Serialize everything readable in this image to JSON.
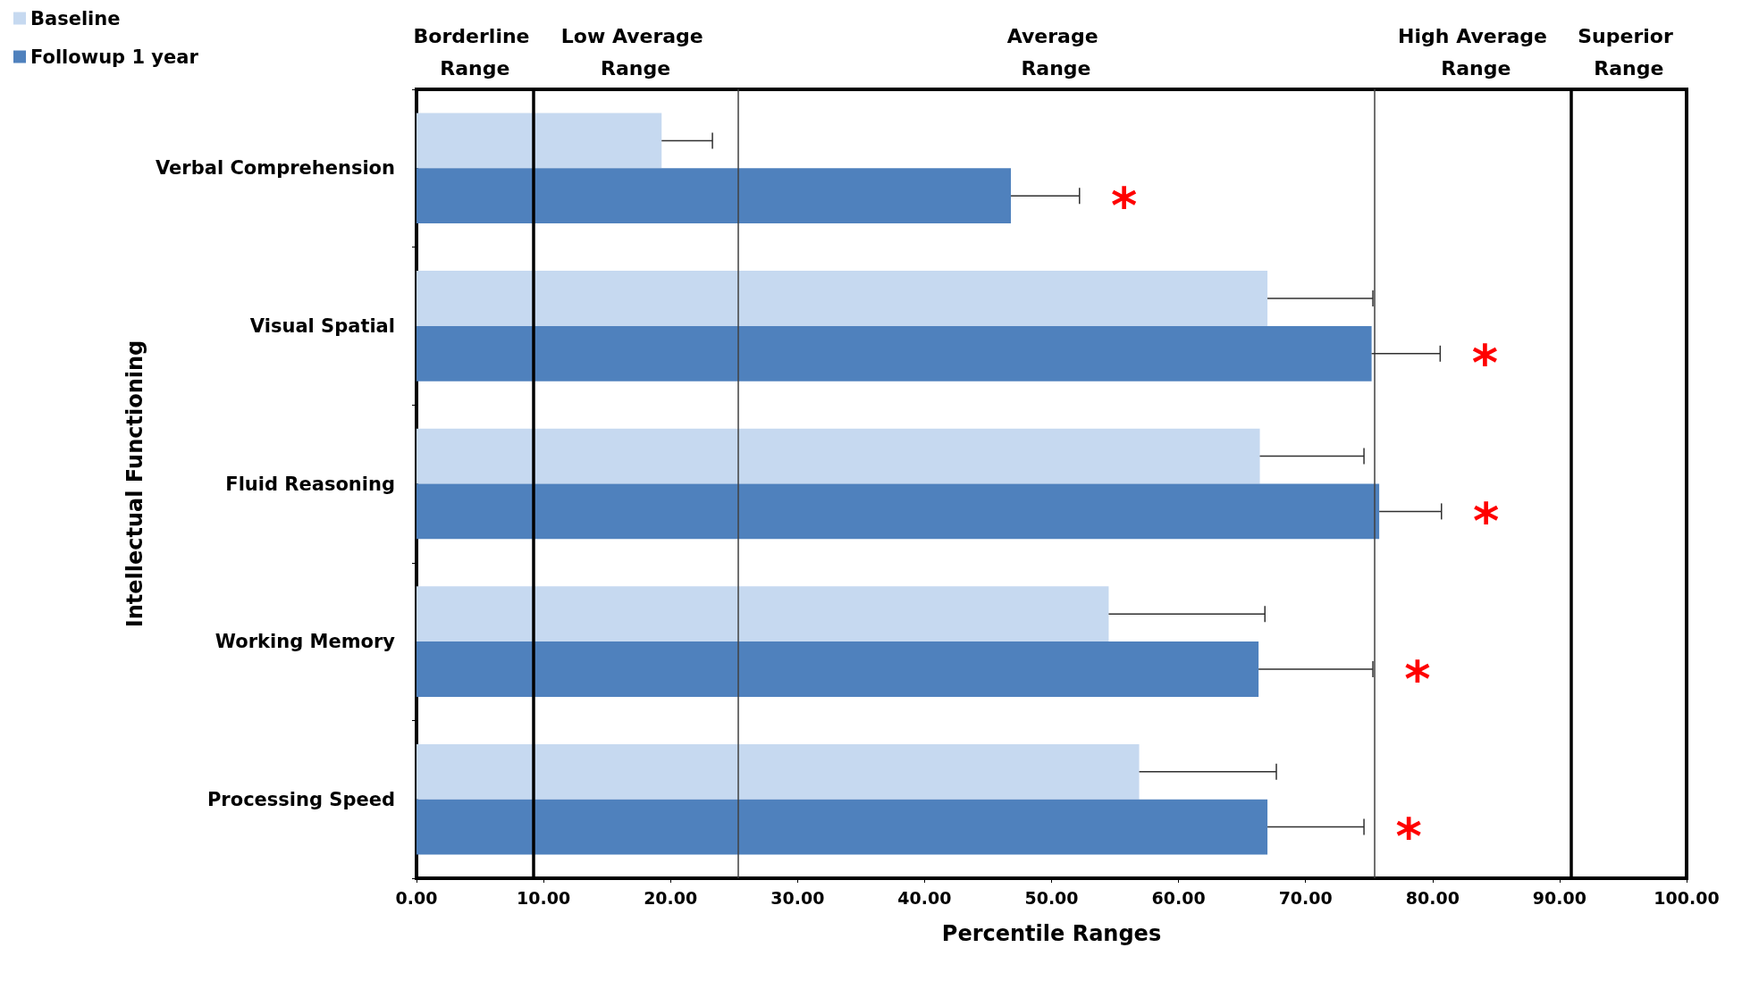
{
  "chart_data": {
    "type": "bar",
    "orientation": "horizontal",
    "xlabel": "Percentile Ranges",
    "ylabel": "Intellectual Functioning",
    "categories": [
      "Verbal Comprehension",
      "Visual Spatial",
      "Fluid Reasoning",
      "Working Memory",
      "Processing Speed"
    ],
    "series": [
      {
        "name": "Baseline",
        "color": "#c6d9f0",
        "values": [
          19.3,
          67.0,
          66.4,
          54.5,
          56.9
        ],
        "errors": [
          [
            19.3,
            23.3
          ],
          [
            67.0,
            75.3
          ],
          [
            66.4,
            74.6
          ],
          [
            54.5,
            66.8
          ],
          [
            56.9,
            67.7
          ]
        ]
      },
      {
        "name": "Followup 1 year",
        "color": "#4f81bd",
        "values": [
          46.8,
          75.2,
          75.8,
          66.3,
          67.0
        ],
        "errors": [
          [
            46.8,
            52.2
          ],
          [
            75.2,
            80.6
          ],
          [
            75.8,
            80.7
          ],
          [
            66.3,
            75.3
          ],
          [
            67.0,
            74.6
          ]
        ]
      }
    ],
    "xlim": [
      0,
      100
    ],
    "xticks": [
      {
        "value": 0,
        "label": "0.00"
      },
      {
        "value": 10,
        "label": "10.00"
      },
      {
        "value": 20,
        "label": "20.00"
      },
      {
        "value": 30,
        "label": "30.00"
      },
      {
        "value": 40,
        "label": "40.00"
      },
      {
        "value": 50,
        "label": "50.00"
      },
      {
        "value": 60,
        "label": "60.00"
      },
      {
        "value": 70,
        "label": "70.00"
      },
      {
        "value": 80,
        "label": "80.00"
      },
      {
        "value": 90,
        "label": "90.00"
      },
      {
        "value": 100,
        "label": "100.00"
      }
    ],
    "ref_lines": [
      {
        "axis": "x",
        "value": 9.2,
        "color": "#000000"
      },
      {
        "axis": "x",
        "value": 25.3,
        "color": "#404040"
      },
      {
        "axis": "x",
        "value": 75.4,
        "color": "#404040"
      },
      {
        "axis": "x",
        "value": 90.9,
        "color": "#000000"
      }
    ],
    "annotations": [
      "Borderline Range",
      "Low Average Range",
      "Average Range",
      "High Average Range",
      "Superior Range",
      "*",
      "*",
      "*",
      "*",
      "*"
    ],
    "legend": "top left",
    "grid": false
  }
}
